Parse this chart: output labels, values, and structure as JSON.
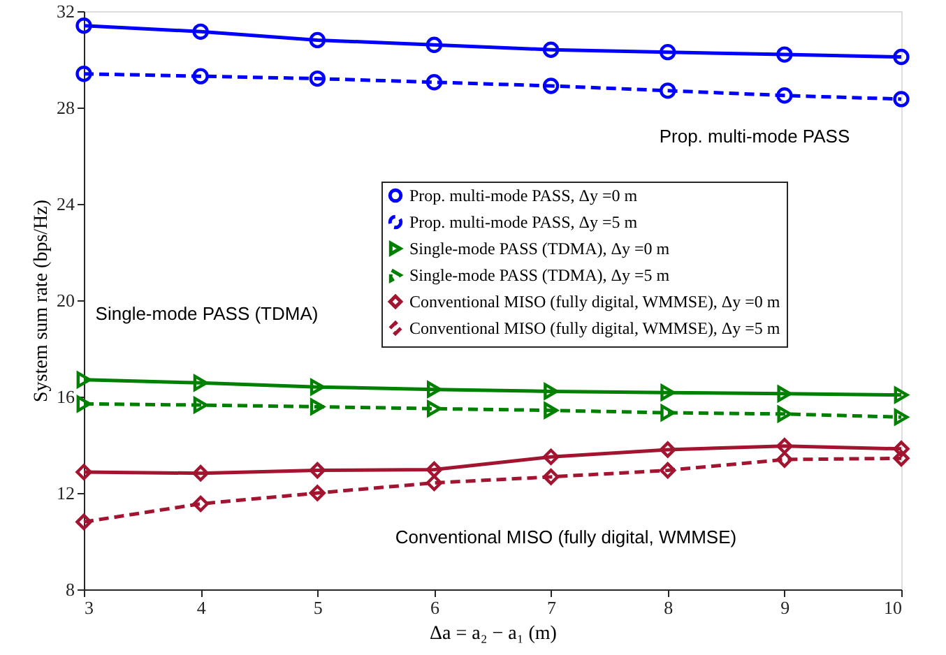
{
  "chart_data": {
    "type": "line",
    "xlabel": "Δa = a₂ − a₁ (m)",
    "ylabel": "System sum rate (bps/Hz)",
    "x": [
      3,
      4,
      5,
      6,
      7,
      8,
      9,
      10
    ],
    "xlim": [
      3,
      10
    ],
    "xticks": [
      3,
      4,
      5,
      6,
      7,
      8,
      9,
      10
    ],
    "ylim": [
      8,
      32
    ],
    "yticks": [
      8,
      12,
      16,
      20,
      24,
      28,
      32
    ],
    "grid": false,
    "legend": "right",
    "series": [
      {
        "name": "Prop. multi-mode PASS, Δy =0 m",
        "color": "#0000ff",
        "marker": "circle",
        "line_style": "solid",
        "values": [
          31.4,
          31.15,
          30.8,
          30.6,
          30.4,
          30.3,
          30.2,
          30.1
        ]
      },
      {
        "name": "Prop. multi-mode PASS, Δy =5 m",
        "color": "#0000ff",
        "marker": "circle",
        "line_style": "dashed",
        "values": [
          29.4,
          29.3,
          29.2,
          29.05,
          28.9,
          28.7,
          28.5,
          28.35
        ]
      },
      {
        "name": "Single-mode PASS (TDMA), Δy =0 m",
        "color": "#008000",
        "marker": "triangle",
        "line_style": "solid",
        "values": [
          16.7,
          16.57,
          16.4,
          16.3,
          16.22,
          16.17,
          16.12,
          16.07
        ]
      },
      {
        "name": "Single-mode PASS (TDMA), Δy =5 m",
        "color": "#008000",
        "marker": "triangle",
        "line_style": "dashed",
        "values": [
          15.7,
          15.65,
          15.58,
          15.5,
          15.43,
          15.33,
          15.28,
          15.15
        ]
      },
      {
        "name": "Conventional MISO (fully digital, WMMSE), Δy =0 m",
        "color": "#a2142f",
        "marker": "diamond",
        "line_style": "solid",
        "values": [
          12.87,
          12.82,
          12.94,
          12.97,
          13.5,
          13.8,
          13.95,
          13.83
        ]
      },
      {
        "name": "Conventional MISO (fully digital, WMMSE), Δy =5 m",
        "color": "#a2142f",
        "marker": "diamond",
        "line_style": "dashed",
        "values": [
          10.8,
          11.55,
          12.0,
          12.42,
          12.67,
          12.94,
          13.39,
          13.44
        ]
      }
    ],
    "annotations": [
      "Prop. multi-mode PASS",
      "Single-mode PASS (TDMA)",
      "Conventional MISO (fully digital, WMMSE)"
    ]
  }
}
